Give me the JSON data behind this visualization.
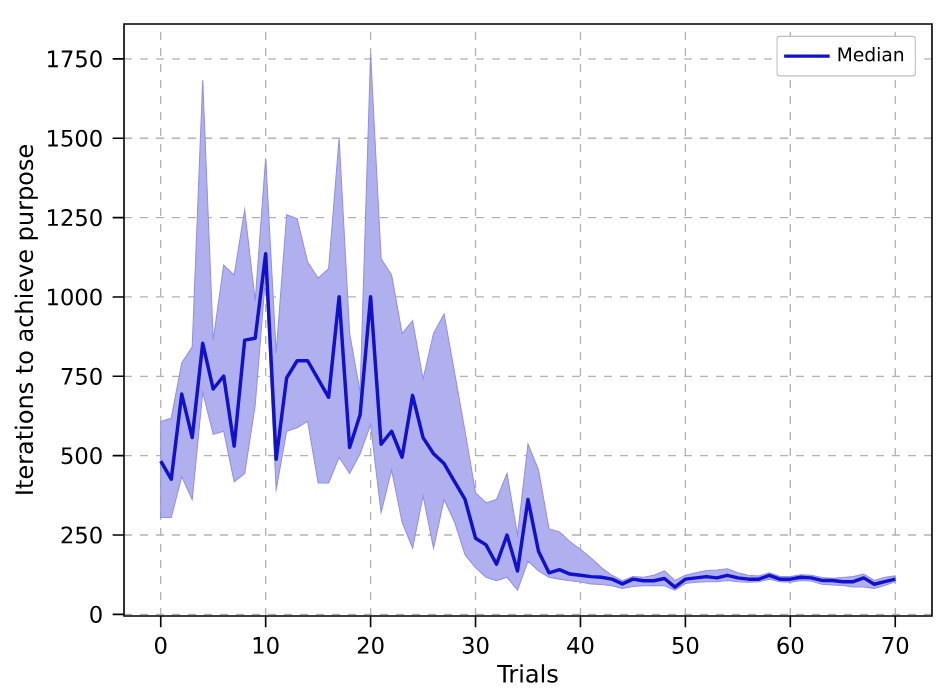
{
  "chart_data": {
    "type": "line",
    "xlabel": "Trials",
    "ylabel": "Iterations to achieve purpose",
    "x": [
      0,
      1,
      2,
      3,
      4,
      5,
      6,
      7,
      8,
      9,
      10,
      11,
      12,
      13,
      14,
      15,
      16,
      17,
      18,
      19,
      20,
      21,
      22,
      23,
      24,
      25,
      26,
      27,
      28,
      29,
      30,
      31,
      32,
      33,
      34,
      35,
      36,
      37,
      38,
      39,
      40,
      41,
      42,
      43,
      44,
      45,
      46,
      47,
      48,
      49,
      50,
      51,
      52,
      53,
      54,
      55,
      56,
      57,
      58,
      59,
      60,
      61,
      62,
      63,
      64,
      65,
      66,
      67,
      68,
      69,
      70
    ],
    "series": [
      {
        "name": "Median",
        "color": "#1010d0",
        "values": [
          483,
          426,
          694,
          557,
          854,
          710,
          751,
          530,
          864,
          870,
          1136,
          489,
          745,
          799,
          799,
          741,
          684,
          1001,
          526,
          629,
          1001,
          536,
          577,
          495,
          690,
          557,
          506,
          475,
          418,
          362,
          240,
          219,
          158,
          250,
          137,
          362,
          199,
          131,
          141,
          127,
          123,
          119,
          117,
          111,
          96,
          111,
          106,
          106,
          113,
          86,
          111,
          115,
          119,
          115,
          123,
          115,
          111,
          111,
          123,
          111,
          111,
          117,
          115,
          107,
          107,
          103,
          103,
          115,
          95,
          103,
          111
        ],
        "upper": [
          608,
          618,
          792,
          843,
          1683,
          864,
          1100,
          1069,
          1274,
          987,
          1437,
          823,
          1259,
          1247,
          1110,
          1059,
          1089,
          1499,
          885,
          700,
          1765,
          1120,
          1069,
          885,
          925,
          741,
          885,
          946,
          762,
          577,
          383,
          352,
          362,
          444,
          250,
          536,
          455,
          270,
          260,
          229,
          205,
          178,
          147,
          123,
          106,
          119,
          117,
          123,
          137,
          107,
          123,
          131,
          138,
          140,
          144,
          131,
          123,
          121,
          131,
          119,
          119,
          125,
          123,
          116,
          114,
          116,
          119,
          127,
          107,
          117,
          121
        ],
        "lower": [
          305,
          305,
          434,
          362,
          700,
          567,
          577,
          418,
          444,
          659,
          1069,
          393,
          577,
          588,
          608,
          414,
          414,
          495,
          444,
          506,
          598,
          321,
          455,
          291,
          209,
          373,
          209,
          362,
          291,
          188,
          147,
          117,
          106,
          117,
          76,
          168,
          137,
          117,
          111,
          106,
          102,
          96,
          94,
          90,
          82,
          88,
          90,
          91,
          90,
          76,
          97,
          101,
          103,
          103,
          107,
          103,
          101,
          103,
          111,
          103,
          101,
          107,
          105,
          95,
          93,
          91,
          86,
          86,
          82,
          91,
          103
        ]
      }
    ],
    "xlim": [
      -3.5,
      73.5
    ],
    "ylim": [
      -5,
      1860
    ],
    "xticks": [
      0,
      10,
      20,
      30,
      40,
      50,
      60,
      70
    ],
    "yticks": [
      0,
      250,
      500,
      750,
      1000,
      1250,
      1500,
      1750
    ],
    "grid": true,
    "legend": "top right",
    "marker": "none",
    "line_style": "solid"
  }
}
